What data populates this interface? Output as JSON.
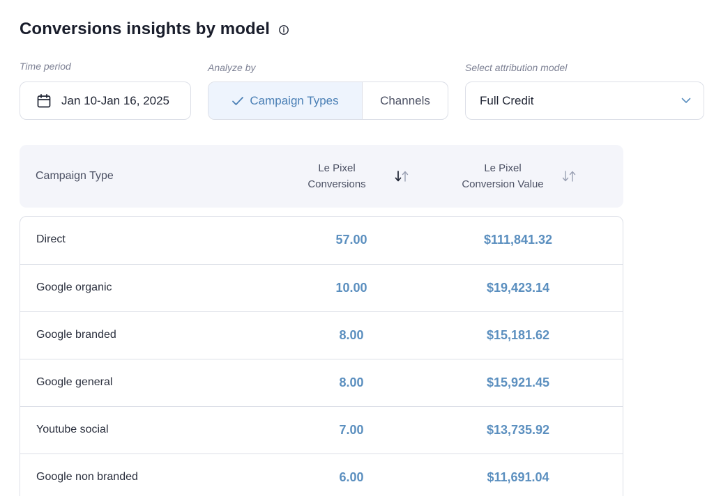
{
  "header": {
    "title": "Conversions insights by model"
  },
  "filters": {
    "time_period_label": "Time period",
    "date_range": "Jan 10-Jan 16, 2025",
    "analyze_by_label": "Analyze by",
    "analyze_options": [
      {
        "label": "Campaign Types",
        "selected": true
      },
      {
        "label": "Channels",
        "selected": false
      }
    ],
    "attribution_label": "Select attribution model",
    "attribution_value": "Full Credit"
  },
  "table": {
    "columns": {
      "campaign_type": "Campaign Type",
      "conversions_line1": "Le Pixel",
      "conversions_line2": "Conversions",
      "value_line1": "Le Pixel",
      "value_line2": "Conversion Value"
    },
    "rows": [
      {
        "name": "Direct",
        "conversions": "57.00",
        "value": "$111,841.32"
      },
      {
        "name": "Google organic",
        "conversions": "10.00",
        "value": "$19,423.14"
      },
      {
        "name": "Google branded",
        "conversions": "8.00",
        "value": "$15,181.62"
      },
      {
        "name": "Google general",
        "conversions": "8.00",
        "value": "$15,921.45"
      },
      {
        "name": "Youtube social",
        "conversions": "7.00",
        "value": "$13,735.92"
      },
      {
        "name": "Google non branded",
        "conversions": "6.00",
        "value": "$11,691.04"
      }
    ]
  },
  "colors": {
    "accent": "#5b8fbf",
    "toggle_active_bg": "#eef4fd",
    "header_bg": "#f4f5fa",
    "border": "#dcdfe7"
  },
  "icons": {
    "info": "info-icon",
    "calendar": "calendar-icon",
    "check": "check-icon",
    "dropdown": "chevron-down-icon",
    "sort_active": "sort-desc-icon",
    "sort_inactive": "sort-icon"
  }
}
